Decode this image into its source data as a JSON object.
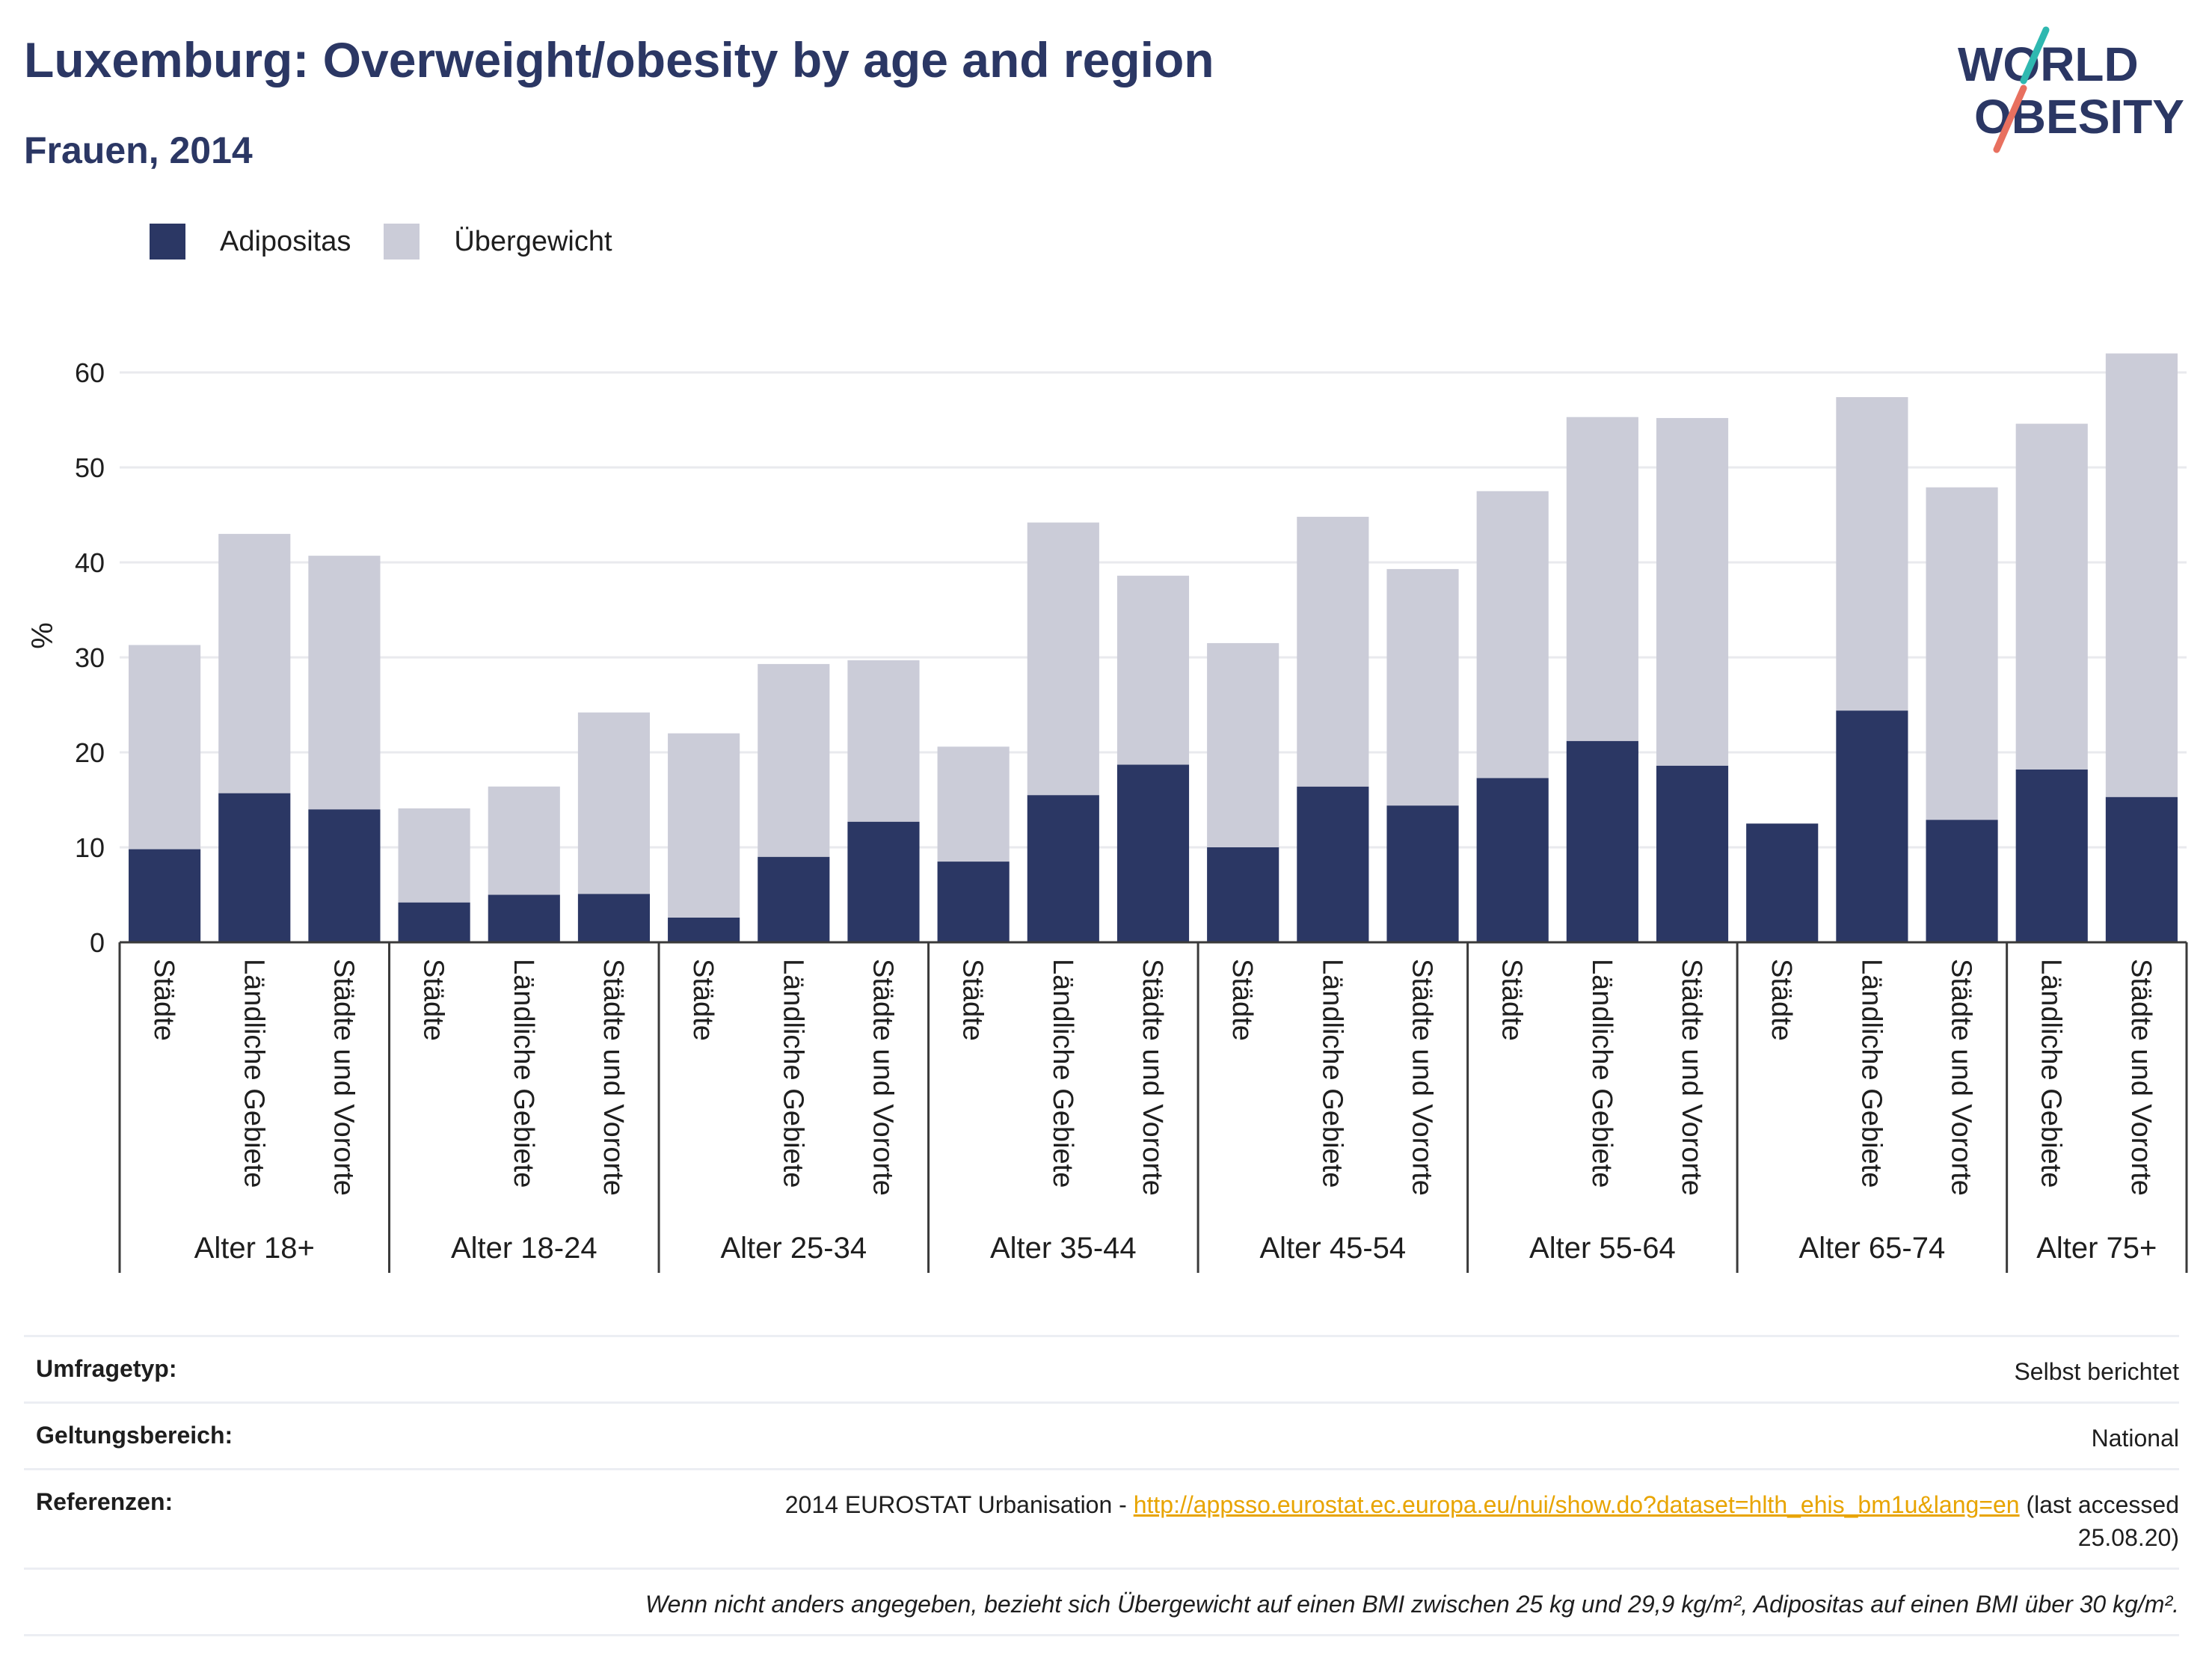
{
  "header": {
    "title": "Luxemburg: Overweight/obesity by age and region",
    "subtitle": "Frauen, 2014"
  },
  "logo": {
    "line1": "WORLD",
    "line2": "OBESITY"
  },
  "legend": [
    {
      "label": "Adipositas",
      "color": "#2b3764"
    },
    {
      "label": "Übergewicht",
      "color": "#cbccd8"
    }
  ],
  "chart_data": {
    "type": "bar",
    "stacked": true,
    "ylabel": "%",
    "ylim": [
      0,
      62
    ],
    "yticks": [
      0,
      10,
      20,
      30,
      40,
      50,
      60
    ],
    "grid": true,
    "legend_position": "top-left",
    "groups": [
      {
        "label": "Alter 18+",
        "categories": [
          "Städte",
          "Ländliche Gebiete",
          "Städte und Vororte"
        ]
      },
      {
        "label": "Alter 18-24",
        "categories": [
          "Städte",
          "Ländliche Gebiete",
          "Städte und Vororte"
        ]
      },
      {
        "label": "Alter 25-34",
        "categories": [
          "Städte",
          "Ländliche Gebiete",
          "Städte und Vororte"
        ]
      },
      {
        "label": "Alter 35-44",
        "categories": [
          "Städte",
          "Ländliche Gebiete",
          "Städte und Vororte"
        ]
      },
      {
        "label": "Alter 45-54",
        "categories": [
          "Städte",
          "Ländliche Gebiete",
          "Städte und Vororte"
        ]
      },
      {
        "label": "Alter 55-64",
        "categories": [
          "Städte",
          "Ländliche Gebiete",
          "Städte und Vororte"
        ]
      },
      {
        "label": "Alter 65-74",
        "categories": [
          "Städte",
          "Ländliche Gebiete",
          "Städte und Vororte"
        ]
      },
      {
        "label": "Alter 75+",
        "categories": [
          "Ländliche Gebiete",
          "Städte und Vororte"
        ]
      }
    ],
    "series": [
      {
        "name": "Adipositas",
        "color": "#2b3764",
        "values": [
          9.8,
          15.7,
          14.0,
          4.2,
          5.0,
          5.1,
          2.6,
          9.0,
          12.7,
          8.5,
          15.5,
          18.7,
          10.0,
          16.4,
          14.4,
          17.3,
          21.2,
          18.6,
          12.5,
          24.4,
          12.9,
          18.2,
          15.3
        ]
      },
      {
        "name": "Übergewicht",
        "color": "#cbccd8",
        "values": [
          21.5,
          27.3,
          26.7,
          9.9,
          11.4,
          19.1,
          19.4,
          20.3,
          17.0,
          12.1,
          28.7,
          19.9,
          21.5,
          28.4,
          24.9,
          30.2,
          34.1,
          36.6,
          0,
          33.0,
          35.0,
          36.4,
          46.7
        ]
      }
    ]
  },
  "info": {
    "survey_label": "Umfragetyp:",
    "survey_value": "Selbst berichtet",
    "scope_label": "Geltungsbereich:",
    "scope_value": "National",
    "ref_label": "Referenzen:",
    "ref_prefix": "2014 EUROSTAT Urbanisation - ",
    "ref_link": "http://appsso.eurostat.ec.europa.eu/nui/show.do?dataset=hlth_ehis_bm1u&lang=en",
    "ref_suffix_1": " (last accessed",
    "ref_suffix_2": "25.08.20)",
    "footnote": "Wenn nicht anders angegeben, bezieht sich Übergewicht auf einen BMI zwischen 25 kg und 29,9 kg/m², Adipositas auf einen BMI über 30 kg/m²."
  }
}
